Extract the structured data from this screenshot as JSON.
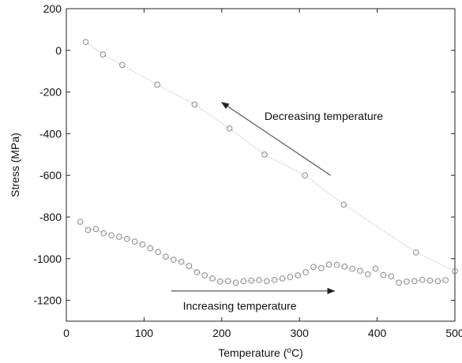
{
  "chart_data": {
    "type": "scatter",
    "title": "",
    "xlabel_main": "Temperature (",
    "xlabel_sup": "o",
    "xlabel_end": "C)",
    "ylabel": "Stress (MPa)",
    "xlim": [
      0,
      500
    ],
    "ylim": [
      -1300,
      200
    ],
    "xticks": [
      0,
      100,
      200,
      300,
      400,
      500
    ],
    "yticks": [
      200,
      0,
      -200,
      -400,
      -600,
      -800,
      -1000,
      -1200
    ],
    "grid": false,
    "legend": "none",
    "marker_color": "#8a8a8a",
    "line_color": "#b0b0b0",
    "series": [
      {
        "x": [
          18,
          28,
          38,
          48,
          58,
          68,
          78,
          88,
          98,
          108,
          118,
          128,
          138,
          148,
          158,
          168,
          178,
          188,
          198,
          208,
          218,
          228,
          238,
          248,
          258,
          268,
          278,
          288,
          298,
          308,
          318,
          328,
          338,
          348,
          358,
          368,
          378,
          388,
          398,
          408,
          418,
          428,
          438,
          448,
          458,
          468,
          478,
          488
        ],
        "y": [
          -823,
          -862,
          -858,
          -878,
          -888,
          -895,
          -905,
          -918,
          -932,
          -950,
          -968,
          -990,
          -1005,
          -1015,
          -1035,
          -1065,
          -1080,
          -1095,
          -1110,
          -1108,
          -1115,
          -1108,
          -1105,
          -1103,
          -1108,
          -1102,
          -1095,
          -1088,
          -1080,
          -1065,
          -1040,
          -1045,
          -1028,
          -1030,
          -1038,
          -1048,
          -1058,
          -1075,
          -1048,
          -1078,
          -1085,
          -1115,
          -1110,
          -1108,
          -1102,
          -1105,
          -1108,
          -1103
        ]
      },
      {
        "x": [
          500,
          450,
          357,
          307,
          255,
          210,
          165,
          117,
          72,
          47,
          25
        ],
        "y": [
          -1060,
          -970,
          -740,
          -600,
          -500,
          -375,
          -260,
          -165,
          -70,
          -20,
          40
        ]
      }
    ],
    "annotations": [
      {
        "text": "Decreasing temperature",
        "x": 255,
        "y": -335,
        "arrow_from": [
          340,
          -600
        ],
        "arrow_to": [
          200,
          -250
        ]
      },
      {
        "text": "Increasing temperature",
        "x": 150,
        "y": -1245,
        "arrow_from": [
          135,
          -1155
        ],
        "arrow_to": [
          345,
          -1155
        ]
      }
    ]
  }
}
